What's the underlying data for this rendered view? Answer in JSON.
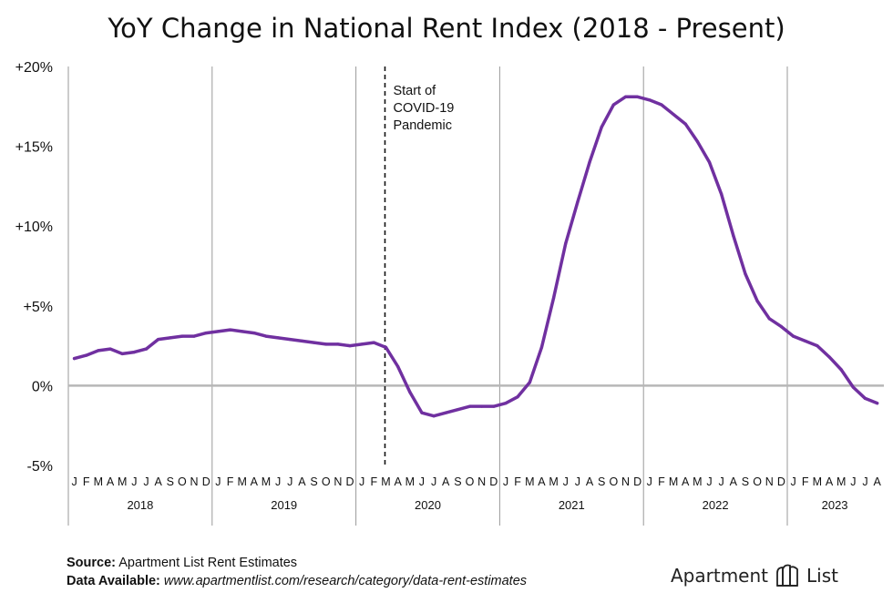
{
  "title": "YoY Change in National Rent Index (2018 - Present)",
  "chart_data": {
    "type": "line",
    "y_ticks": [
      {
        "value": 20,
        "label": "+20%"
      },
      {
        "value": 15,
        "label": "+15%"
      },
      {
        "value": 10,
        "label": "+10%"
      },
      {
        "value": 5,
        "label": "+5%"
      },
      {
        "value": 0,
        "label": "0%"
      },
      {
        "value": -5,
        "label": "-5%"
      }
    ],
    "ylim": [
      -5,
      20
    ],
    "grid": "vertical lines at year boundaries",
    "years": [
      {
        "label": "2018",
        "months": [
          "J",
          "F",
          "M",
          "A",
          "M",
          "J",
          "J",
          "A",
          "S",
          "O",
          "N",
          "D"
        ]
      },
      {
        "label": "2019",
        "months": [
          "J",
          "F",
          "M",
          "A",
          "M",
          "J",
          "J",
          "A",
          "S",
          "O",
          "N",
          "D"
        ]
      },
      {
        "label": "2020",
        "months": [
          "J",
          "F",
          "M",
          "A",
          "M",
          "J",
          "J",
          "A",
          "S",
          "O",
          "N",
          "D"
        ]
      },
      {
        "label": "2021",
        "months": [
          "J",
          "F",
          "M",
          "A",
          "M",
          "J",
          "J",
          "A",
          "S",
          "O",
          "N",
          "D"
        ]
      },
      {
        "label": "2022",
        "months": [
          "J",
          "F",
          "M",
          "A",
          "M",
          "J",
          "J",
          "A",
          "S",
          "O",
          "N",
          "D"
        ]
      },
      {
        "label": "2023",
        "months": [
          "J",
          "F",
          "M",
          "A",
          "M",
          "J",
          "J",
          "A"
        ]
      }
    ],
    "series": [
      {
        "color": "#7030a0",
        "start": "2018-01",
        "values": [
          1.7,
          1.9,
          2.2,
          2.3,
          2.0,
          2.1,
          2.3,
          2.9,
          3.0,
          3.1,
          3.1,
          3.3,
          3.4,
          3.5,
          3.4,
          3.3,
          3.1,
          3.0,
          2.9,
          2.8,
          2.7,
          2.6,
          2.6,
          2.5,
          2.6,
          2.7,
          2.4,
          1.2,
          -0.4,
          -1.7,
          -1.9,
          -1.7,
          -1.5,
          -1.3,
          -1.3,
          -1.3,
          -1.1,
          -0.7,
          0.2,
          2.4,
          5.5,
          8.9,
          11.5,
          14.0,
          16.2,
          17.6,
          18.1,
          18.1,
          17.9,
          17.6,
          17.0,
          16.4,
          15.3,
          14.0,
          12.0,
          9.4,
          7.0,
          5.3,
          4.2,
          3.7,
          3.1,
          2.8,
          2.5,
          1.8,
          1.0,
          -0.1,
          -0.8,
          -1.1
        ]
      }
    ],
    "annotation": {
      "month": "2020-03",
      "style": "dashed vertical line",
      "lines": [
        "Start of",
        "COVID-19",
        "Pandemic"
      ]
    }
  },
  "footer": {
    "source_label": "Source:",
    "source_text": "Apartment List Rent Estimates",
    "data_label": "Data Available:",
    "data_text": "www.apartmentlist.com/research/category/data-rent-estimates"
  },
  "logo": {
    "left": "Apartment",
    "right": "List",
    "icon": "apartment-list-logo-icon"
  }
}
